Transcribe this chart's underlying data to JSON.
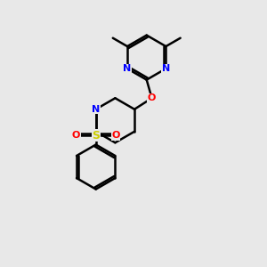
{
  "bg_color": "#e8e8e8",
  "bond_color": "#000000",
  "N_color": "#0000ff",
  "O_color": "#ff0000",
  "S_color": "#cccc00",
  "lw": 1.8,
  "dbo": 0.055,
  "xlim": [
    0,
    10
  ],
  "ylim": [
    0,
    10
  ]
}
